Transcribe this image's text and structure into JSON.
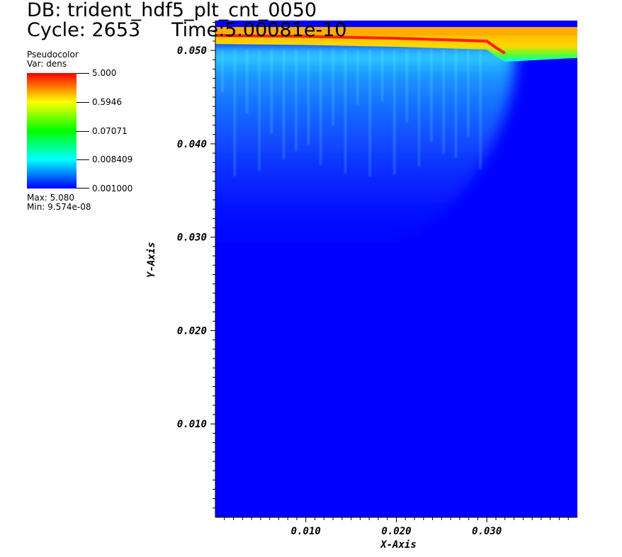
{
  "header": {
    "db": "DB: trident_hdf5_plt_cnt_0050",
    "cycle": "Cycle: 2653",
    "time": "Time:5.00081e-10"
  },
  "legend": {
    "plot_type": "Pseudocolor",
    "var": "Var: dens",
    "ticks": [
      "5.000",
      "0.5946",
      "0.07071",
      "0.008409",
      "0.001000"
    ],
    "max": "Max:  5.080",
    "min": "Min:  9.574e-08"
  },
  "colors": {
    "background_field": "#0000ff",
    "shocked_region": "#ffad00",
    "front_line": "#ff2000",
    "colorbar": [
      "#ff0000",
      "#ffff00",
      "#00ff00",
      "#00ffff",
      "#0000ff"
    ]
  },
  "chart_data": {
    "type": "heatmap",
    "variable": "dens",
    "color_scale": "log",
    "color_range": [
      0.001,
      5.0
    ],
    "data_max": 5.08,
    "data_min": 9.574e-08,
    "xlabel": "X-Axis",
    "ylabel": "Y-Axis",
    "xlim": [
      0.0,
      0.04
    ],
    "ylim": [
      0.0,
      0.0532
    ],
    "xticks": [
      0.01,
      0.02,
      0.03
    ],
    "xtick_labels": [
      "0.010",
      "0.020",
      "0.030"
    ],
    "yticks": [
      0.01,
      0.02,
      0.03,
      0.04,
      0.05
    ],
    "ytick_labels": [
      "0.010",
      "0.020",
      "0.030",
      "0.040",
      "0.050"
    ],
    "features": {
      "upper_dense_layer": {
        "x_range": [
          0.0,
          0.04
        ],
        "y_range": [
          0.0505,
          0.0518
        ],
        "approx_dens": 1.0
      },
      "front_crest": {
        "x": [
          0.0,
          0.01,
          0.02,
          0.03,
          0.031,
          0.032
        ],
        "y": [
          0.0516,
          0.0515,
          0.0513,
          0.051,
          0.0503,
          0.0497
        ]
      },
      "low_density_plume": {
        "x_range": [
          0.0,
          0.033
        ],
        "y_range": [
          0.028,
          0.0505
        ],
        "approx_dens": 0.005
      },
      "background": {
        "approx_dens": 0.001
      }
    }
  }
}
